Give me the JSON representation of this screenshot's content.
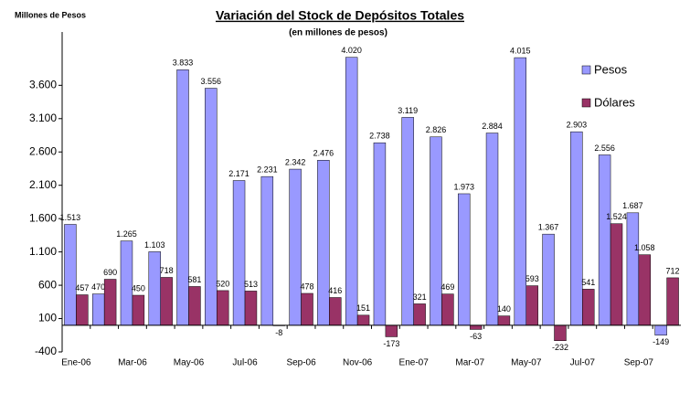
{
  "chart_data": {
    "type": "bar",
    "title": "Variación del Stock de Depósitos Totales",
    "subtitle": "(en millones de pesos)",
    "y_label": "Millones de Pesos",
    "categories": [
      "Ene-06",
      null,
      "Mar-06",
      null,
      "May-06",
      null,
      "Jul-06",
      null,
      "Sep-06",
      null,
      "Nov-06",
      null,
      "Ene-07",
      null,
      "Mar-07",
      null,
      "May-07",
      null,
      "Jul-07",
      null,
      "Sep-07",
      null
    ],
    "series": [
      {
        "name": "Pesos",
        "color": "#9999ff",
        "values": [
          1513,
          470,
          1265,
          1103,
          3833,
          3556,
          2171,
          2231,
          2342,
          2476,
          4020,
          2738,
          3119,
          2826,
          1973,
          2884,
          4015,
          1367,
          2903,
          2556,
          1687,
          -149
        ],
        "value_labels": [
          "1.513",
          "470",
          "1.265",
          "1.103",
          "3.833",
          "3.556",
          "2.171",
          "2.231",
          "2.342",
          "2.476",
          "4.020",
          "2.738",
          "3.119",
          "2.826",
          "1.973",
          "2.884",
          "4.015",
          "1.367",
          "2.903",
          "2.556",
          "1.687",
          "-149"
        ]
      },
      {
        "name": "Dólares",
        "color": "#993366",
        "values": [
          457,
          690,
          450,
          718,
          581,
          520,
          513,
          -8,
          478,
          416,
          151,
          -173,
          321,
          469,
          -63,
          140,
          593,
          -232,
          541,
          1524,
          1058,
          712
        ],
        "value_labels": [
          "457",
          "690",
          "450",
          "718",
          "581",
          "520",
          "513",
          "-8",
          "478",
          "416",
          "151",
          "-173",
          "321",
          "469",
          "-63",
          "140",
          "593",
          "-232",
          "541",
          "1.524",
          "1.058",
          "712"
        ]
      }
    ],
    "ylim": [
      -400,
      4400
    ],
    "yticks": [
      -400,
      100,
      600,
      {
        "value": 1100,
        "label": "1.100"
      },
      {
        "value": 1600,
        "label": "1.600"
      },
      {
        "value": 2100,
        "label": "2.100"
      },
      {
        "value": 2600,
        "label": "2.600"
      },
      {
        "value": 3100,
        "label": "3.100"
      },
      {
        "value": 3600,
        "label": "3.600"
      }
    ],
    "grid": false,
    "legend": "right"
  }
}
